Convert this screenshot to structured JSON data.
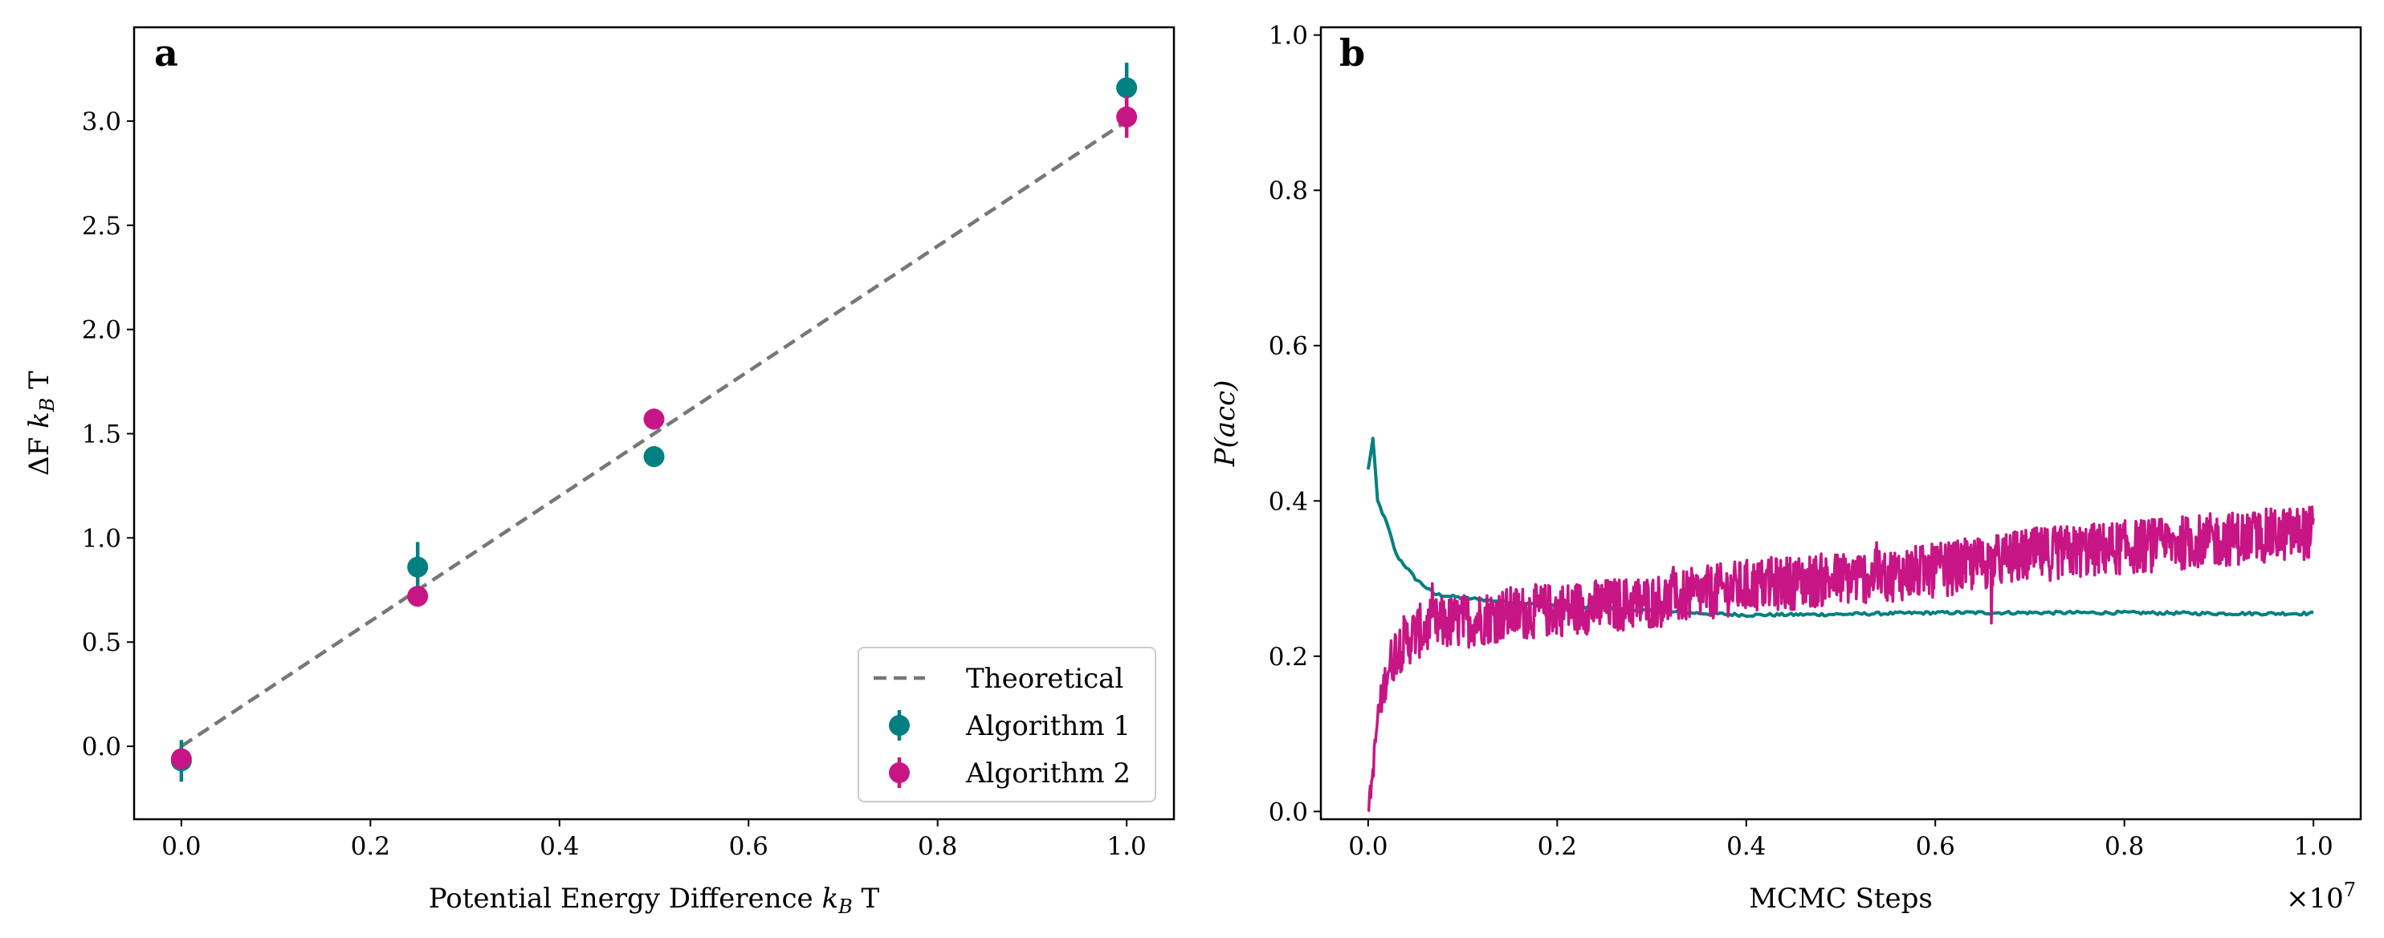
{
  "colors": {
    "algo1": "#008080",
    "algo2": "#c71585",
    "theory": "#777777"
  },
  "panels": {
    "a": "a",
    "b": "b"
  },
  "chart_data": [
    {
      "type": "scatter",
      "panel": "a",
      "xlabel": "Potential Energy Difference k_B T",
      "ylabel": "ΔF k_B T",
      "xlim": [
        -0.05,
        1.05
      ],
      "ylim": [
        -0.35,
        3.45
      ],
      "xticks": [
        "0.0",
        "0.2",
        "0.4",
        "0.6",
        "0.8",
        "1.0"
      ],
      "yticks": [
        "0.0",
        "0.5",
        "1.0",
        "1.5",
        "2.0",
        "2.5",
        "3.0"
      ],
      "legend_position": "lower right",
      "series": [
        {
          "name": "Theoretical",
          "style": "dashed-line",
          "x": [
            0,
            1
          ],
          "y": [
            0,
            3
          ]
        },
        {
          "name": "Algorithm 1",
          "style": "errorbar",
          "x": [
            0,
            0.25,
            0.5,
            1.0
          ],
          "y": [
            -0.07,
            0.86,
            1.39,
            3.16
          ],
          "yerr": [
            0.1,
            0.12,
            0.05,
            0.12
          ]
        },
        {
          "name": "Algorithm 2",
          "style": "errorbar",
          "x": [
            0,
            0.25,
            0.5,
            1.0
          ],
          "y": [
            -0.06,
            0.72,
            1.57,
            3.02
          ],
          "yerr": [
            0.03,
            0.03,
            0.05,
            0.1
          ]
        }
      ]
    },
    {
      "type": "line",
      "panel": "b",
      "xlabel": "MCMC Steps",
      "ylabel": "P(acc)",
      "x_multiplier": "×10^7",
      "xlim": [
        -0.05,
        1.05
      ],
      "ylim": [
        -0.01,
        1.01
      ],
      "xticks": [
        "0.0",
        "0.2",
        "0.4",
        "0.6",
        "0.8",
        "1.0"
      ],
      "yticks": [
        "0.0",
        "0.2",
        "0.4",
        "0.6",
        "0.8",
        "1.0"
      ],
      "series": [
        {
          "color_key": "algo1",
          "x": [
            0,
            0.005,
            0.01,
            0.02,
            0.03,
            0.05,
            0.07,
            0.1,
            0.15,
            0.2,
            0.3,
            0.4,
            0.5,
            0.6,
            0.7,
            0.8,
            0.9,
            1.0
          ],
          "y": [
            0.44,
            0.48,
            0.4,
            0.37,
            0.33,
            0.3,
            0.28,
            0.275,
            0.27,
            0.265,
            0.258,
            0.253,
            0.254,
            0.256,
            0.256,
            0.256,
            0.255,
            0.255
          ]
        },
        {
          "color_key": "algo2",
          "x": [
            0,
            0.005,
            0.01,
            0.02,
            0.03,
            0.05,
            0.07,
            0.1,
            0.15,
            0.2,
            0.3,
            0.4,
            0.5,
            0.6,
            0.7,
            0.8,
            0.9,
            1.0
          ],
          "y": [
            0.0,
            0.05,
            0.12,
            0.18,
            0.21,
            0.23,
            0.24,
            0.245,
            0.255,
            0.26,
            0.27,
            0.29,
            0.3,
            0.31,
            0.33,
            0.34,
            0.35,
            0.36
          ],
          "noise": 0.035
        }
      ]
    }
  ]
}
